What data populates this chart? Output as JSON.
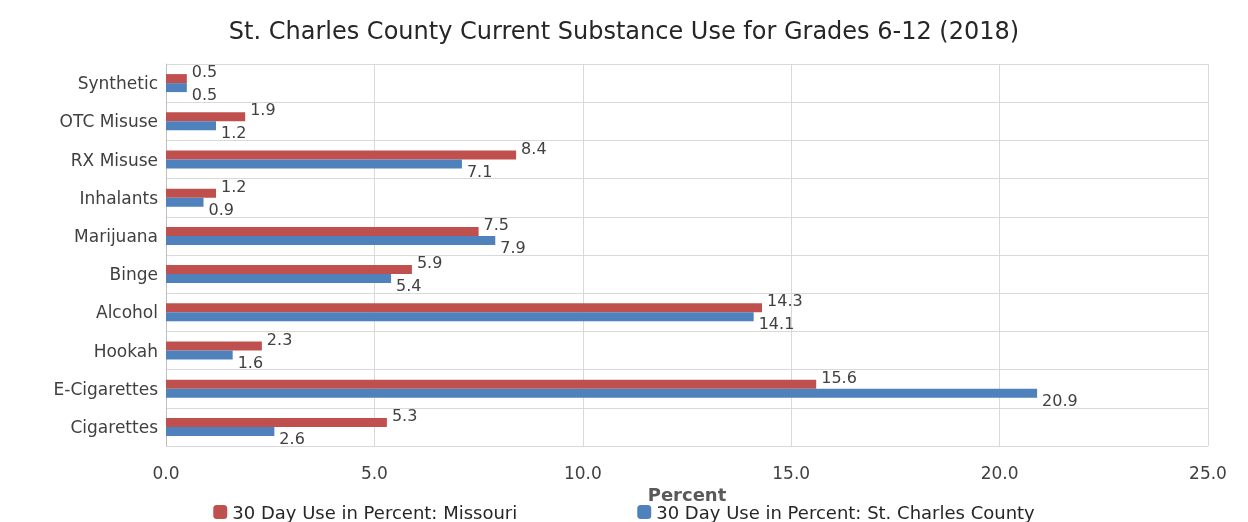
{
  "chart_data": {
    "type": "bar",
    "orientation": "horizontal",
    "title": "St. Charles County Current Substance Use for Grades 6-12 (2018)",
    "xlabel": "Percent",
    "categories": [
      "Synthetic",
      "OTC Misuse",
      "RX Misuse",
      "Inhalants",
      "Marijuana",
      "Binge",
      "Alcohol",
      "Hookah",
      "E-Cigarettes",
      "Cigarettes"
    ],
    "series": [
      {
        "name": "30 Day Use in Percent: Missouri",
        "color": "#c0504d",
        "values": [
          0.5,
          1.9,
          8.4,
          1.2,
          7.5,
          5.9,
          14.3,
          2.3,
          15.6,
          5.3
        ]
      },
      {
        "name": "30 Day Use in Percent: St. Charles County",
        "color": "#4f81bd",
        "values": [
          0.5,
          1.2,
          7.1,
          0.9,
          7.9,
          5.4,
          14.1,
          1.6,
          20.9,
          2.6
        ]
      }
    ],
    "xlim": [
      0,
      25
    ],
    "xticks": [
      {
        "value": 0,
        "label": "0.0"
      },
      {
        "value": 5,
        "label": "5.0"
      },
      {
        "value": 10,
        "label": "10.0"
      },
      {
        "value": 15,
        "label": "15.0"
      },
      {
        "value": 20,
        "label": "20.0"
      },
      {
        "value": 25,
        "label": "25.0"
      }
    ],
    "data_labels": true,
    "grid": true,
    "legend": "bottom"
  }
}
